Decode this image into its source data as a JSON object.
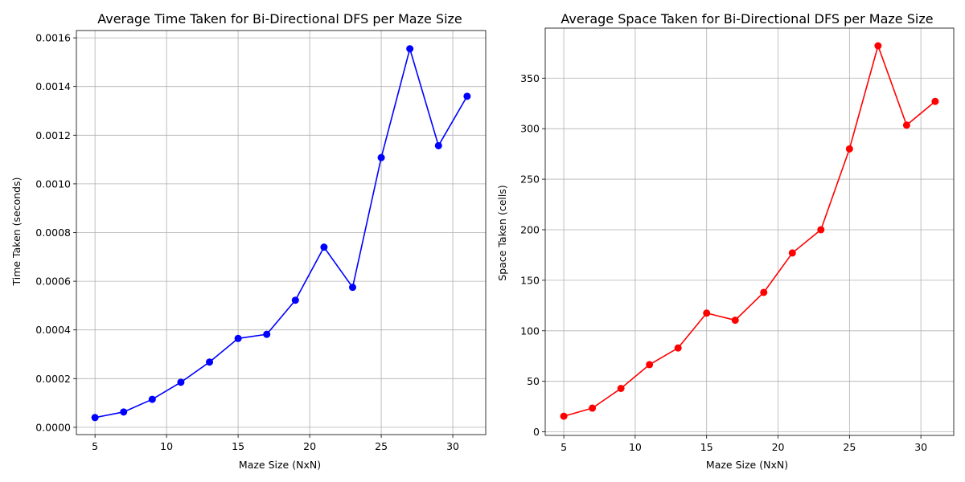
{
  "chart_data": [
    {
      "type": "line",
      "title": "Average Time Taken for Bi-Directional DFS per Maze Size",
      "xlabel": "Maze Size (NxN)",
      "ylabel": "Time Taken (seconds)",
      "x": [
        5,
        7,
        9,
        11,
        13,
        15,
        17,
        19,
        21,
        23,
        25,
        27,
        29,
        31
      ],
      "series": [
        {
          "color": "#0000ff",
          "marker": "circle",
          "values": [
            4e-05,
            6.3e-05,
            0.000115,
            0.000185,
            0.000268,
            0.000365,
            0.000382,
            0.000522,
            0.00074,
            0.000575,
            0.001108,
            0.001555,
            0.001157,
            0.00136
          ]
        }
      ],
      "xlim": [
        3.7,
        32.3
      ],
      "ylim": [
        -3e-05,
        0.00163
      ],
      "xticks": [
        5,
        10,
        15,
        20,
        25,
        30
      ],
      "xtick_labels": [
        "5",
        "10",
        "15",
        "20",
        "25",
        "30"
      ],
      "yticks": [
        0,
        0.0002,
        0.0004,
        0.0006,
        0.0008,
        0.001,
        0.0012,
        0.0014,
        0.0016
      ],
      "ytick_labels": [
        "0.0000",
        "0.0002",
        "0.0004",
        "0.0006",
        "0.0008",
        "0.0010",
        "0.0012",
        "0.0014",
        "0.0016"
      ],
      "grid": true
    },
    {
      "type": "line",
      "title": "Average Space Taken for Bi-Directional DFS per Maze Size",
      "xlabel": "Maze Size (NxN)",
      "ylabel": "Space Taken (cells)",
      "x": [
        5,
        7,
        9,
        11,
        13,
        15,
        17,
        19,
        21,
        23,
        25,
        27,
        29,
        31
      ],
      "series": [
        {
          "color": "#ff0000",
          "marker": "circle",
          "values": [
            15.5,
            23.5,
            43,
            66.5,
            83,
            117.5,
            110.5,
            138,
            177,
            200,
            280,
            382,
            303.5,
            327
          ]
        }
      ],
      "xlim": [
        3.7,
        32.3
      ],
      "ylim": [
        -3.5,
        399.5
      ],
      "xticks": [
        5,
        10,
        15,
        20,
        25,
        30
      ],
      "xtick_labels": [
        "5",
        "10",
        "15",
        "20",
        "25",
        "30"
      ],
      "yticks": [
        0,
        50,
        100,
        150,
        200,
        250,
        300,
        350
      ],
      "ytick_labels": [
        "0",
        "50",
        "100",
        "150",
        "200",
        "250",
        "300",
        "350"
      ],
      "grid": true
    }
  ]
}
